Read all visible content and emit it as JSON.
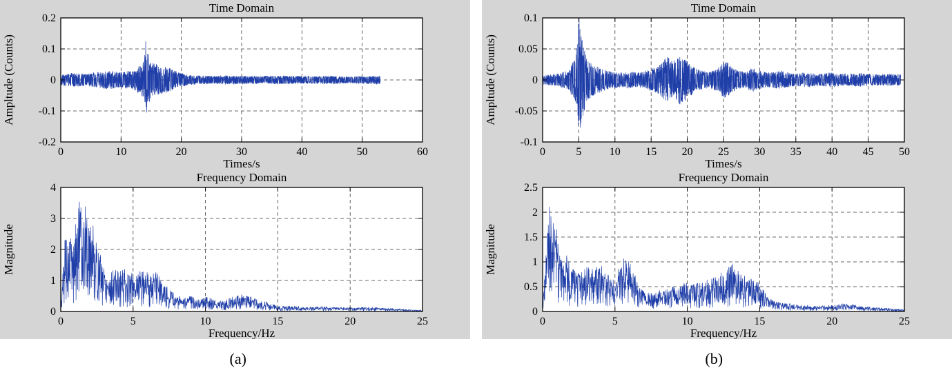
{
  "page": {
    "background": "#ffffff",
    "panel_background": "#d5d5d5"
  },
  "style": {
    "trace_color": "#1f3ea8",
    "grid_color": "#3a3a3a",
    "axis_color": "#000000",
    "plot_background": "#ffffff",
    "text_color": "#000000"
  },
  "captions": {
    "a": "(a)",
    "b": "(b)"
  },
  "chart_data": [
    {
      "id": "a-time",
      "type": "line",
      "title": "Time Domain",
      "xlabel": "Times/s",
      "ylabel": "Ampltude (Counts)",
      "xlim": [
        0,
        60
      ],
      "ylim": [
        -0.2,
        0.2
      ],
      "xticks": [
        0,
        10,
        20,
        30,
        40,
        50,
        60
      ],
      "yticks": [
        -0.2,
        -0.1,
        0,
        0.1,
        0.2
      ],
      "grid": true,
      "legend": false,
      "signal": {
        "kind": "noise",
        "seed": 3,
        "x_start": 0,
        "x_end": 53,
        "envelope": [
          [
            0,
            0.018
          ],
          [
            2,
            0.022
          ],
          [
            4,
            0.02
          ],
          [
            6,
            0.025
          ],
          [
            8,
            0.03
          ],
          [
            10,
            0.026
          ],
          [
            12,
            0.03
          ],
          [
            13,
            0.045
          ],
          [
            13.8,
            0.06
          ],
          [
            14.3,
            0.1
          ],
          [
            15,
            0.055
          ],
          [
            16,
            0.05
          ],
          [
            17,
            0.045
          ],
          [
            18,
            0.04
          ],
          [
            19,
            0.03
          ],
          [
            20,
            0.022
          ],
          [
            22,
            0.015
          ],
          [
            25,
            0.013
          ],
          [
            28,
            0.014
          ],
          [
            30,
            0.013
          ],
          [
            33,
            0.012
          ],
          [
            36,
            0.014
          ],
          [
            40,
            0.012
          ],
          [
            44,
            0.013
          ],
          [
            48,
            0.011
          ],
          [
            51,
            0.013
          ],
          [
            53,
            0.014
          ]
        ],
        "spikes": [
          [
            13.9,
            0.08
          ],
          [
            14.1,
            0.125
          ],
          [
            14.25,
            -0.105
          ]
        ]
      }
    },
    {
      "id": "a-freq",
      "type": "line",
      "title": "Frequency Domain",
      "xlabel": "Frequency/Hz",
      "ylabel": "Magnitude",
      "xlim": [
        0,
        25
      ],
      "ylim": [
        0,
        4
      ],
      "xticks": [
        0,
        5,
        10,
        15,
        20,
        25
      ],
      "yticks": [
        0,
        1,
        2,
        3,
        4
      ],
      "grid": true,
      "legend": false,
      "signal": {
        "kind": "spectrum",
        "seed": 5,
        "envelope": [
          [
            0,
            0.05
          ],
          [
            0.2,
            1.8
          ],
          [
            0.35,
            3.0
          ],
          [
            0.5,
            2.0
          ],
          [
            0.7,
            2.6
          ],
          [
            0.9,
            2.2
          ],
          [
            1.1,
            3.1
          ],
          [
            1.3,
            3.7
          ],
          [
            1.5,
            3.2
          ],
          [
            1.7,
            3.5
          ],
          [
            1.9,
            2.8
          ],
          [
            2.1,
            3.2
          ],
          [
            2.3,
            2.6
          ],
          [
            2.5,
            2.2
          ],
          [
            2.8,
            1.8
          ],
          [
            3.1,
            1.5
          ],
          [
            3.4,
            1.2
          ],
          [
            3.7,
            1.4
          ],
          [
            4,
            1.3
          ],
          [
            4.3,
            1.5
          ],
          [
            4.6,
            1.2
          ],
          [
            5,
            1.3
          ],
          [
            5.4,
            1.4
          ],
          [
            5.8,
            1.5
          ],
          [
            6.2,
            1.2
          ],
          [
            6.6,
            1.3
          ],
          [
            7,
            1.0
          ],
          [
            7.4,
            0.8
          ],
          [
            7.8,
            0.6
          ],
          [
            8.2,
            0.5
          ],
          [
            8.6,
            0.45
          ],
          [
            9,
            0.5
          ],
          [
            9.5,
            0.45
          ],
          [
            10,
            0.5
          ],
          [
            10.5,
            0.4
          ],
          [
            11,
            0.35
          ],
          [
            11.5,
            0.4
          ],
          [
            12,
            0.5
          ],
          [
            12.5,
            0.55
          ],
          [
            13,
            0.5
          ],
          [
            13.5,
            0.45
          ],
          [
            14,
            0.35
          ],
          [
            14.5,
            0.25
          ],
          [
            15,
            0.2
          ],
          [
            16,
            0.18
          ],
          [
            17,
            0.15
          ],
          [
            18,
            0.16
          ],
          [
            19,
            0.14
          ],
          [
            20,
            0.13
          ],
          [
            21,
            0.14
          ],
          [
            22,
            0.12
          ],
          [
            23,
            0.1
          ],
          [
            24,
            0.06
          ],
          [
            25,
            0.04
          ]
        ]
      }
    },
    {
      "id": "b-time",
      "type": "line",
      "title": "Time Domain",
      "xlabel": "Times/s",
      "ylabel": "Ampltude (Counts)",
      "xlim": [
        0,
        50
      ],
      "ylim": [
        -0.1,
        0.1
      ],
      "xticks": [
        0,
        5,
        10,
        15,
        20,
        25,
        30,
        35,
        40,
        45,
        50
      ],
      "yticks": [
        -0.1,
        -0.05,
        0,
        0.05,
        0.1
      ],
      "grid": true,
      "legend": false,
      "signal": {
        "kind": "noise",
        "seed": 11,
        "x_start": 0,
        "x_end": 49.5,
        "envelope": [
          [
            0,
            0.008
          ],
          [
            2,
            0.01
          ],
          [
            3.5,
            0.015
          ],
          [
            4.5,
            0.035
          ],
          [
            4.9,
            0.07
          ],
          [
            5.1,
            0.095
          ],
          [
            5.4,
            0.07
          ],
          [
            6,
            0.04
          ],
          [
            6.5,
            0.03
          ],
          [
            7,
            0.025
          ],
          [
            8,
            0.02
          ],
          [
            9,
            0.015
          ],
          [
            10,
            0.013
          ],
          [
            11,
            0.012
          ],
          [
            12,
            0.014
          ],
          [
            13,
            0.012
          ],
          [
            14,
            0.013
          ],
          [
            15,
            0.018
          ],
          [
            16,
            0.022
          ],
          [
            17,
            0.035
          ],
          [
            17.5,
            0.04
          ],
          [
            18,
            0.03
          ],
          [
            18.5,
            0.035
          ],
          [
            19,
            0.04
          ],
          [
            19.5,
            0.035
          ],
          [
            20,
            0.03
          ],
          [
            20.5,
            0.025
          ],
          [
            21,
            0.02
          ],
          [
            22,
            0.015
          ],
          [
            23,
            0.013
          ],
          [
            24,
            0.018
          ],
          [
            25,
            0.028
          ],
          [
            25.5,
            0.03
          ],
          [
            26,
            0.022
          ],
          [
            27,
            0.015
          ],
          [
            28,
            0.013
          ],
          [
            29,
            0.02
          ],
          [
            30,
            0.015
          ],
          [
            31,
            0.012
          ],
          [
            32,
            0.013
          ],
          [
            33,
            0.016
          ],
          [
            34,
            0.012
          ],
          [
            35,
            0.01
          ],
          [
            36,
            0.012
          ],
          [
            38,
            0.01
          ],
          [
            40,
            0.012
          ],
          [
            42,
            0.01
          ],
          [
            44,
            0.011
          ],
          [
            46,
            0.009
          ],
          [
            48,
            0.01
          ],
          [
            49.5,
            0.009
          ]
        ],
        "spikes": [
          [
            4.95,
            0.09
          ],
          [
            5.05,
            0.1
          ],
          [
            5.15,
            -0.065
          ]
        ]
      }
    },
    {
      "id": "b-freq",
      "type": "line",
      "title": "Frequency Domain",
      "xlabel": "Frequency/Hz",
      "ylabel": "Magnitude",
      "xlim": [
        0,
        25
      ],
      "ylim": [
        0,
        2.5
      ],
      "xticks": [
        0,
        5,
        10,
        15,
        20,
        25
      ],
      "yticks": [
        0,
        0.5,
        1,
        1.5,
        2,
        2.5
      ],
      "grid": true,
      "legend": false,
      "signal": {
        "kind": "spectrum",
        "seed": 9,
        "envelope": [
          [
            0,
            0.1
          ],
          [
            0.3,
            1.5
          ],
          [
            0.5,
            2.4
          ],
          [
            0.7,
            1.8
          ],
          [
            0.9,
            2.0
          ],
          [
            1.1,
            1.2
          ],
          [
            1.4,
            1.0
          ],
          [
            1.7,
            1.2
          ],
          [
            2,
            0.9
          ],
          [
            2.5,
            0.8
          ],
          [
            3,
            0.95
          ],
          [
            3.5,
            0.85
          ],
          [
            4,
            0.95
          ],
          [
            4.5,
            0.75
          ],
          [
            5,
            0.65
          ],
          [
            5.5,
            1.05
          ],
          [
            5.8,
            1.1
          ],
          [
            6.2,
            0.9
          ],
          [
            6.6,
            0.55
          ],
          [
            7,
            0.4
          ],
          [
            7.5,
            0.38
          ],
          [
            8,
            0.42
          ],
          [
            8.5,
            0.45
          ],
          [
            9,
            0.5
          ],
          [
            9.5,
            0.55
          ],
          [
            10,
            0.6
          ],
          [
            10.5,
            0.55
          ],
          [
            11,
            0.6
          ],
          [
            11.5,
            0.65
          ],
          [
            12,
            0.7
          ],
          [
            12.5,
            0.85
          ],
          [
            13,
            0.95
          ],
          [
            13.3,
            1.0
          ],
          [
            13.6,
            0.85
          ],
          [
            14,
            0.75
          ],
          [
            14.5,
            0.65
          ],
          [
            15,
            0.6
          ],
          [
            15.3,
            0.45
          ],
          [
            15.6,
            0.3
          ],
          [
            16,
            0.22
          ],
          [
            17,
            0.16
          ],
          [
            18,
            0.13
          ],
          [
            19,
            0.11
          ],
          [
            20,
            0.13
          ],
          [
            21,
            0.16
          ],
          [
            21.5,
            0.14
          ],
          [
            22,
            0.11
          ],
          [
            23,
            0.08
          ],
          [
            24,
            0.06
          ],
          [
            25,
            0.04
          ]
        ]
      }
    }
  ]
}
